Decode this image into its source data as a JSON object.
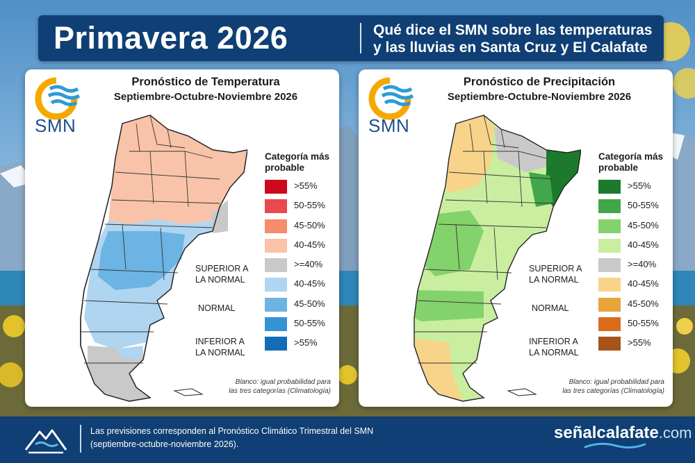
{
  "header": {
    "title": "Primavera 2026",
    "subtitle_line1": "Qué dice el SMN sobre las temperaturas",
    "subtitle_line2": "y las lluvias en Santa Cruz y El Calafate"
  },
  "panels": [
    {
      "id": "temperatura",
      "logo_text": "SMN",
      "title": "Pronóstico de Temperatura",
      "period": "Septiembre-Octubre-Noviembre 2026",
      "legend_title_line1": "Categoría más",
      "legend_title_line2": "probable",
      "legend": [
        {
          "label": ">55%",
          "color": "#cc0a1c"
        },
        {
          "label": "50-55%",
          "color": "#e84a4e"
        },
        {
          "label": "45-50%",
          "color": "#f58c6a"
        },
        {
          "label": "40-45%",
          "color": "#f8c3a9"
        },
        {
          "label": ">=40%",
          "color": "#c9c9c9"
        },
        {
          "label": "40-45%",
          "color": "#b0d5f1"
        },
        {
          "label": "45-50%",
          "color": "#6cb4e3"
        },
        {
          "label": "50-55%",
          "color": "#3592d4"
        },
        {
          "label": ">55%",
          "color": "#146cb9"
        }
      ],
      "categories": {
        "superior_line1": "SUPERIOR A",
        "superior_line2": "LA NORMAL",
        "normal": "NORMAL",
        "inferior_line1": "INFERIOR A",
        "inferior_line2": "LA NORMAL"
      },
      "note_line1": "Blanco: igual probabilidad para",
      "note_line2": "las tres categorías (Climatología)"
    },
    {
      "id": "precipitacion",
      "logo_text": "SMN",
      "title": "Pronóstico de Precipitación",
      "period": "Septiembre-Octubre-Noviembre 2026",
      "legend_title_line1": "Categoría más",
      "legend_title_line2": "probable",
      "legend": [
        {
          "label": ">55%",
          "color": "#1d7a2c"
        },
        {
          "label": "50-55%",
          "color": "#42a64a"
        },
        {
          "label": "45-50%",
          "color": "#84d26b"
        },
        {
          "label": "40-45%",
          "color": "#c9ee9f"
        },
        {
          "label": ">=40%",
          "color": "#c9c9c9"
        },
        {
          "label": "40-45%",
          "color": "#f8d48a"
        },
        {
          "label": "45-50%",
          "color": "#e8a43a"
        },
        {
          "label": "50-55%",
          "color": "#d96d1c"
        },
        {
          "label": ">55%",
          "color": "#a85318"
        }
      ],
      "categories": {
        "superior_line1": "SUPERIOR A",
        "superior_line2": "LA NORMAL",
        "normal": "NORMAL",
        "inferior_line1": "INFERIOR A",
        "inferior_line2": "LA NORMAL"
      },
      "note_line1": "Blanco: igual probabilidad para",
      "note_line2": "las tres categorías (Climatología)"
    }
  ],
  "footer": {
    "text_line1": "Las previsiones corresponden al Pronóstico Climático Trimestral del SMN",
    "text_line2": "(septiembre-octubre-noviembre 2026).",
    "brand": "señalcalafate",
    "brand_domain": ".com"
  }
}
